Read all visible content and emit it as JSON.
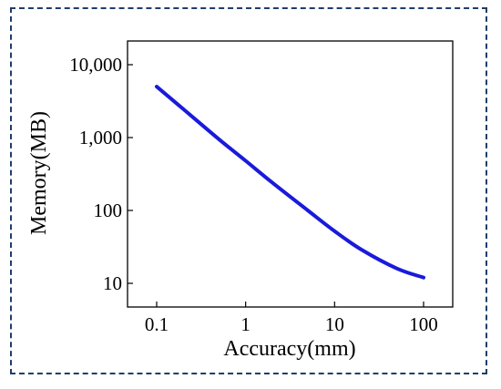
{
  "chart_data": {
    "type": "line",
    "xlabel": "Accuracy(mm)",
    "ylabel": "Memory(MB)",
    "x_scale": "log",
    "y_scale": "log",
    "xlim": [
      0.1,
      100
    ],
    "ylim": [
      10,
      10000
    ],
    "x_ticks": [
      0.1,
      1,
      10,
      100
    ],
    "x_tick_labels": [
      "0.1",
      "1",
      "10",
      "100"
    ],
    "y_ticks": [
      10,
      100,
      1000,
      10000
    ],
    "y_tick_labels": [
      "10",
      "100",
      "1,000",
      "10,000"
    ],
    "grid": false,
    "series": [
      {
        "color": "#1a1adb",
        "x": [
          0.1,
          0.2,
          0.5,
          1,
          2,
          5,
          10,
          20,
          50,
          100
        ],
        "y": [
          5000,
          2450,
          950,
          480,
          240,
          100,
          52,
          29,
          16,
          12
        ]
      }
    ]
  }
}
